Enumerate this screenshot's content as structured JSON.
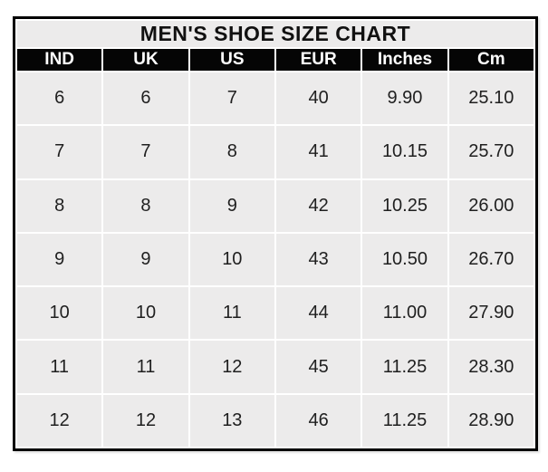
{
  "page_title": "MEN'S SHOE SIZE CHART",
  "colors": {
    "page_bg": "#ffffff",
    "outer_border": "#000000",
    "header_bg": "#050505",
    "header_text": "#ffffff",
    "cell_bg": "#ecebeb",
    "cell_text": "#1f1f1f",
    "cell_gap": "#ffffff"
  },
  "chart_data": {
    "type": "table",
    "title": "MEN'S SHOE SIZE CHART",
    "columns": [
      "IND",
      "UK",
      "US",
      "EUR",
      "Inches",
      "Cm"
    ],
    "rows": [
      [
        "6",
        "6",
        "7",
        "40",
        "9.90",
        "25.10"
      ],
      [
        "7",
        "7",
        "8",
        "41",
        "10.15",
        "25.70"
      ],
      [
        "8",
        "8",
        "9",
        "42",
        "10.25",
        "26.00"
      ],
      [
        "9",
        "9",
        "10",
        "43",
        "10.50",
        "26.70"
      ],
      [
        "10",
        "10",
        "11",
        "44",
        "11.00",
        "27.90"
      ],
      [
        "11",
        "11",
        "12",
        "45",
        "11.25",
        "28.30"
      ],
      [
        "12",
        "12",
        "13",
        "46",
        "11.25",
        "28.90"
      ]
    ]
  }
}
